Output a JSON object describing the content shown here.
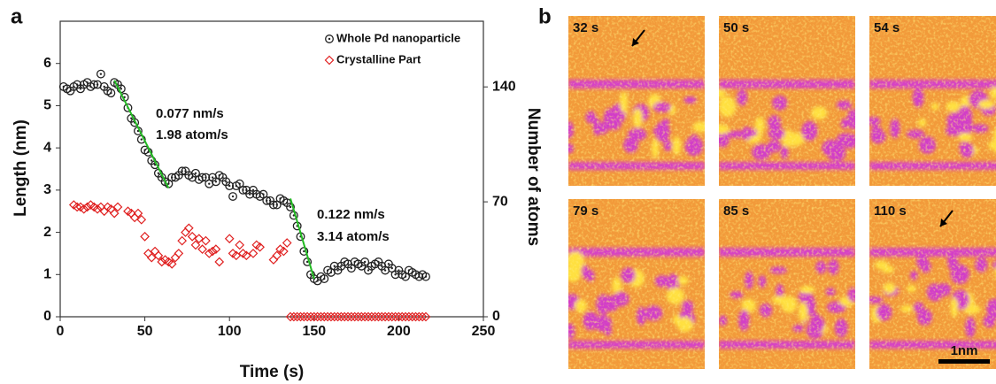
{
  "panel_a_label": "a",
  "chart_data": {
    "type": "scatter",
    "x_label": "Time (s)",
    "y_label": "Length (nm)",
    "y2_label": "Number of atoms",
    "xlim": [
      0,
      250
    ],
    "xticks": [
      0,
      50,
      100,
      150,
      200,
      250
    ],
    "ylim": [
      0,
      7
    ],
    "yticks": [
      0,
      1,
      2,
      3,
      4,
      5,
      6
    ],
    "y2lim": [
      0,
      180
    ],
    "y2ticks": [
      0,
      70,
      140
    ],
    "legend": "upper right",
    "series": [
      {
        "name": "Whole Pd nanoparticle",
        "color": "#222222",
        "marker": "circle",
        "x": [
          2,
          4,
          6,
          8,
          10,
          12,
          14,
          16,
          18,
          20,
          22,
          24,
          26,
          28,
          30,
          32,
          34,
          36,
          38,
          40,
          42,
          44,
          46,
          48,
          50,
          52,
          54,
          56,
          58,
          60,
          62,
          64,
          66,
          68,
          70,
          72,
          74,
          76,
          78,
          80,
          82,
          84,
          86,
          88,
          90,
          92,
          94,
          96,
          98,
          100,
          102,
          104,
          106,
          108,
          110,
          112,
          114,
          116,
          118,
          120,
          122,
          124,
          126,
          128,
          130,
          132,
          134,
          136,
          138,
          140,
          142,
          144,
          146,
          148,
          150,
          152,
          154,
          156,
          158,
          160,
          162,
          164,
          166,
          168,
          170,
          172,
          174,
          176,
          178,
          180,
          182,
          184,
          186,
          188,
          190,
          192,
          194,
          196,
          198,
          200,
          202,
          204,
          206,
          208,
          210,
          212,
          214,
          216
        ],
        "values": [
          5.45,
          5.4,
          5.35,
          5.45,
          5.5,
          5.4,
          5.5,
          5.55,
          5.45,
          5.5,
          5.5,
          5.75,
          5.45,
          5.35,
          5.3,
          5.55,
          5.5,
          5.4,
          5.2,
          4.95,
          4.7,
          4.6,
          4.4,
          4.2,
          3.95,
          3.9,
          3.7,
          3.6,
          3.4,
          3.3,
          3.2,
          3.15,
          3.3,
          3.3,
          3.35,
          3.45,
          3.45,
          3.35,
          3.3,
          3.4,
          3.25,
          3.3,
          3.3,
          3.15,
          3.3,
          3.2,
          3.35,
          3.3,
          3.2,
          3.1,
          2.85,
          3.1,
          3.15,
          3.0,
          3.0,
          2.9,
          3.0,
          2.9,
          2.85,
          2.9,
          2.75,
          2.75,
          2.65,
          2.65,
          2.8,
          2.75,
          2.7,
          2.6,
          2.4,
          2.15,
          1.9,
          1.55,
          1.3,
          1.0,
          0.9,
          0.85,
          0.95,
          0.9,
          1.1,
          1.05,
          1.2,
          1.1,
          1.2,
          1.3,
          1.25,
          1.15,
          1.3,
          1.25,
          1.2,
          1.3,
          1.1,
          1.2,
          1.25,
          1.3,
          1.2,
          1.1,
          1.25,
          1.15,
          1.0,
          1.1,
          1.0,
          0.95,
          1.1,
          1.05,
          1.0,
          0.95,
          1.0,
          0.95
        ]
      },
      {
        "name": "Crystalline Part",
        "color": "#e02020",
        "marker": "diamond",
        "x": [
          8,
          10,
          12,
          14,
          16,
          18,
          20,
          22,
          24,
          26,
          28,
          30,
          32,
          34,
          40,
          42,
          44,
          46,
          48,
          50,
          52,
          54,
          56,
          58,
          60,
          62,
          64,
          66,
          68,
          70,
          72,
          74,
          76,
          78,
          80,
          82,
          84,
          86,
          88,
          90,
          92,
          94,
          100,
          102,
          104,
          106,
          108,
          110,
          114,
          116,
          118,
          126,
          128,
          130,
          132,
          134,
          136,
          138,
          140,
          142,
          144,
          146,
          148,
          150,
          152,
          154,
          156,
          158,
          160,
          162,
          164,
          166,
          168,
          170,
          172,
          174,
          176,
          178,
          180,
          182,
          184,
          186,
          188,
          190,
          192,
          194,
          196,
          198,
          200,
          202,
          204,
          206,
          208,
          210,
          212,
          214,
          216
        ],
        "values": [
          2.65,
          2.6,
          2.6,
          2.55,
          2.6,
          2.65,
          2.6,
          2.55,
          2.6,
          2.5,
          2.6,
          2.55,
          2.45,
          2.6,
          2.5,
          2.45,
          2.35,
          2.45,
          2.3,
          1.9,
          1.5,
          1.4,
          1.55,
          1.45,
          1.3,
          1.35,
          1.3,
          1.25,
          1.4,
          1.5,
          1.8,
          2.0,
          2.1,
          1.9,
          1.7,
          1.85,
          1.6,
          1.8,
          1.5,
          1.55,
          1.6,
          1.3,
          1.85,
          1.5,
          1.45,
          1.7,
          1.5,
          1.45,
          1.5,
          1.7,
          1.65,
          1.35,
          1.45,
          1.6,
          1.55,
          1.75,
          0,
          0,
          0,
          0,
          0,
          0,
          0,
          0,
          0,
          0,
          0,
          0,
          0,
          0,
          0,
          0,
          0,
          0,
          0,
          0,
          0,
          0,
          0,
          0,
          0,
          0,
          0,
          0,
          0,
          0,
          0,
          0,
          0,
          0,
          0,
          0,
          0,
          0,
          0,
          0,
          0
        ]
      }
    ],
    "fit_lines": [
      {
        "color": "#22bb22",
        "x": [
          32,
          64
        ],
        "values": [
          5.6,
          3.05
        ]
      },
      {
        "color": "#22bb22",
        "x": [
          136,
          150
        ],
        "values": [
          2.8,
          0.9
        ]
      }
    ],
    "annotations": [
      "0.077 nm/s",
      "1.98 atom/s",
      "0.122 nm/s",
      "3.14 atom/s"
    ]
  },
  "panel_b": {
    "label": "b",
    "tiles": [
      {
        "label": "32 s"
      },
      {
        "label": "50 s"
      },
      {
        "label": "54 s"
      },
      {
        "label": "79 s"
      },
      {
        "label": "85 s"
      },
      {
        "label": "110 s"
      }
    ],
    "scale_bar": "1nm"
  }
}
